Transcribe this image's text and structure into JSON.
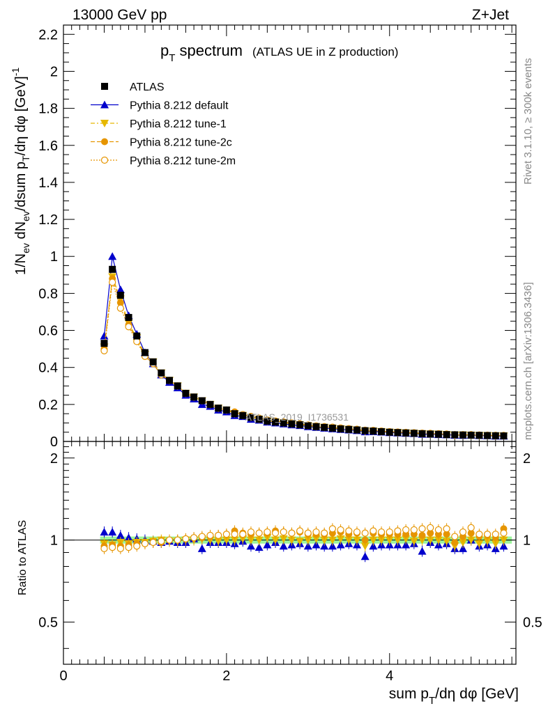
{
  "header": {
    "energy": "13000 GeV pp",
    "process": "Z+Jet"
  },
  "side_labels": {
    "rivet": "Rivet 3.1.10, ≥ 300k events",
    "source": "mcplots.cern.ch [arXiv:1306.3436]"
  },
  "watermark": "ATLAS_2019_I1736531",
  "chart_data": {
    "type": "scatter",
    "title": "pT spectrum",
    "title_main": "p",
    "title_sub": "T",
    "title_rest": " spectrum",
    "subtitle": "(ATLAS UE in Z production)",
    "xlabel": "sum p_T/dη dφ [GeV]",
    "ylabel": "1/N_ev dN_ev/dsum p_T/dη dφ [GeV]^-1",
    "ratio_ylabel": "Ratio to ATLAS",
    "xlim": [
      0,
      5.55
    ],
    "ylim": [
      0,
      2.25
    ],
    "ratio_ylim": [
      0.35,
      2.3
    ],
    "xticks": [
      "0",
      "2",
      "4"
    ],
    "yticks": [
      "0",
      "0.2",
      "0.4",
      "0.6",
      "0.8",
      "1",
      "1.2",
      "1.4",
      "1.6",
      "1.8",
      "2",
      "2.2"
    ],
    "ratio_yticks": [
      "0.5",
      "1",
      "2"
    ],
    "x": [
      0.5,
      0.6,
      0.7,
      0.8,
      0.9,
      1.0,
      1.1,
      1.2,
      1.3,
      1.4,
      1.5,
      1.6,
      1.7,
      1.8,
      1.9,
      2.0,
      2.1,
      2.2,
      2.3,
      2.4,
      2.5,
      2.6,
      2.7,
      2.8,
      2.9,
      3.0,
      3.1,
      3.2,
      3.3,
      3.4,
      3.5,
      3.6,
      3.7,
      3.8,
      3.9,
      4.0,
      4.1,
      4.2,
      4.3,
      4.4,
      4.5,
      4.6,
      4.7,
      4.8,
      4.9,
      5.0,
      5.1,
      5.2,
      5.3,
      5.4
    ],
    "series": [
      {
        "name": "ATLAS",
        "color": "#000000",
        "values": [
          0.53,
          0.93,
          0.79,
          0.67,
          0.57,
          0.48,
          0.43,
          0.37,
          0.33,
          0.3,
          0.26,
          0.24,
          0.22,
          0.2,
          0.18,
          0.17,
          0.15,
          0.14,
          0.13,
          0.12,
          0.11,
          0.105,
          0.1,
          0.095,
          0.09,
          0.085,
          0.08,
          0.076,
          0.072,
          0.068,
          0.065,
          0.062,
          0.058,
          0.056,
          0.053,
          0.05,
          0.048,
          0.046,
          0.044,
          0.042,
          0.04,
          0.039,
          0.037,
          0.036,
          0.035,
          0.034,
          0.033,
          0.032,
          0.031,
          0.03
        ],
        "ratio": [
          1,
          1,
          1,
          1,
          1,
          1,
          1,
          1,
          1,
          1,
          1,
          1,
          1,
          1,
          1,
          1,
          1,
          1,
          1,
          1,
          1,
          1,
          1,
          1,
          1,
          1,
          1,
          1,
          1,
          1,
          1,
          1,
          1,
          1,
          1,
          1,
          1,
          1,
          1,
          1,
          1,
          1,
          1,
          1,
          1,
          1,
          1,
          1,
          1,
          1
        ]
      },
      {
        "name": "Pythia 8.212 default",
        "color": "#0000cc",
        "values": [
          0.57,
          1.0,
          0.82,
          0.68,
          0.58,
          0.48,
          0.42,
          0.36,
          0.32,
          0.29,
          0.25,
          0.23,
          0.2,
          0.19,
          0.17,
          0.16,
          0.14,
          0.135,
          0.12,
          0.115,
          0.105,
          0.1,
          0.095,
          0.09,
          0.086,
          0.08,
          0.076,
          0.072,
          0.068,
          0.065,
          0.062,
          0.059,
          0.052,
          0.053,
          0.051,
          0.048,
          0.046,
          0.044,
          0.043,
          0.039,
          0.039,
          0.037,
          0.036,
          0.034,
          0.033,
          0.034,
          0.032,
          0.031,
          0.029,
          0.029
        ],
        "ratio": [
          1.07,
          1.07,
          1.04,
          1.02,
          1.01,
          1.0,
          0.99,
          0.98,
          0.99,
          0.98,
          0.98,
          1.01,
          0.93,
          0.98,
          0.98,
          0.98,
          0.97,
          0.99,
          0.95,
          0.94,
          0.96,
          0.98,
          0.95,
          0.96,
          0.97,
          0.95,
          0.96,
          0.95,
          0.95,
          0.96,
          0.97,
          0.96,
          0.87,
          0.95,
          0.96,
          0.96,
          0.96,
          0.96,
          0.97,
          0.91,
          0.98,
          0.96,
          0.97,
          0.93,
          0.93,
          1.0,
          0.95,
          0.96,
          0.93,
          0.95
        ]
      },
      {
        "name": "Pythia 8.212 tune-1",
        "color": "#e6b800",
        "values": [
          0.51,
          0.89,
          0.77,
          0.64,
          0.56,
          0.47,
          0.43,
          0.37,
          0.33,
          0.3,
          0.26,
          0.24,
          0.22,
          0.2,
          0.18,
          0.17,
          0.15,
          0.14,
          0.13,
          0.12,
          0.11,
          0.105,
          0.1,
          0.095,
          0.09,
          0.085,
          0.08,
          0.076,
          0.072,
          0.068,
          0.065,
          0.062,
          0.055,
          0.056,
          0.053,
          0.05,
          0.048,
          0.046,
          0.044,
          0.042,
          0.04,
          0.039,
          0.037,
          0.034,
          0.035,
          0.034,
          0.032,
          0.032,
          0.03,
          0.03
        ],
        "ratio": [
          0.97,
          0.96,
          0.98,
          0.97,
          0.98,
          0.98,
          0.99,
          1.0,
          0.99,
          0.99,
          1.0,
          1.0,
          1.01,
          1.0,
          0.99,
          1.0,
          1.0,
          1.01,
          1.0,
          1.0,
          1.02,
          1.0,
          1.01,
          1.0,
          0.99,
          1.0,
          1.01,
          1.0,
          1.0,
          1.01,
          1.0,
          1.0,
          0.95,
          1.0,
          1.0,
          1.0,
          1.0,
          1.01,
          0.99,
          1.0,
          1.0,
          1.0,
          0.99,
          0.95,
          0.98,
          1.0,
          0.97,
          0.99,
          0.97,
          1.0
        ]
      },
      {
        "name": "Pythia 8.212 tune-2c",
        "color": "#e69500",
        "values": [
          0.5,
          0.88,
          0.75,
          0.63,
          0.55,
          0.46,
          0.42,
          0.36,
          0.33,
          0.3,
          0.26,
          0.24,
          0.22,
          0.2,
          0.18,
          0.17,
          0.16,
          0.145,
          0.135,
          0.125,
          0.115,
          0.11,
          0.105,
          0.1,
          0.095,
          0.088,
          0.083,
          0.079,
          0.076,
          0.072,
          0.068,
          0.065,
          0.058,
          0.059,
          0.055,
          0.052,
          0.05,
          0.048,
          0.046,
          0.044,
          0.042,
          0.041,
          0.039,
          0.035,
          0.036,
          0.036,
          0.034,
          0.033,
          0.031,
          0.033
        ],
        "ratio": [
          0.95,
          0.96,
          0.95,
          0.96,
          0.97,
          0.97,
          0.98,
          0.98,
          1.0,
          1.0,
          1.01,
          1.02,
          1.02,
          1.03,
          1.04,
          1.05,
          1.08,
          1.06,
          1.05,
          1.06,
          1.06,
          1.08,
          1.07,
          1.06,
          1.07,
          1.05,
          1.05,
          1.05,
          1.06,
          1.07,
          1.05,
          1.06,
          1.0,
          1.06,
          1.05,
          1.05,
          1.05,
          1.05,
          1.05,
          1.04,
          1.06,
          1.05,
          1.05,
          0.98,
          1.03,
          1.06,
          1.03,
          1.04,
          1.02,
          1.1
        ]
      },
      {
        "name": "Pythia 8.212 tune-2m",
        "color": "#e69500",
        "values": [
          0.49,
          0.86,
          0.72,
          0.62,
          0.54,
          0.46,
          0.42,
          0.36,
          0.33,
          0.3,
          0.26,
          0.24,
          0.22,
          0.2,
          0.18,
          0.17,
          0.155,
          0.145,
          0.135,
          0.126,
          0.116,
          0.11,
          0.105,
          0.1,
          0.095,
          0.089,
          0.084,
          0.08,
          0.077,
          0.073,
          0.069,
          0.066,
          0.061,
          0.06,
          0.056,
          0.053,
          0.051,
          0.049,
          0.047,
          0.045,
          0.044,
          0.042,
          0.04,
          0.037,
          0.037,
          0.037,
          0.035,
          0.034,
          0.033,
          0.032
        ],
        "ratio": [
          0.93,
          0.94,
          0.93,
          0.94,
          0.95,
          0.97,
          0.98,
          0.99,
          1.0,
          1.0,
          1.01,
          1.02,
          1.03,
          1.04,
          1.04,
          1.05,
          1.05,
          1.05,
          1.07,
          1.06,
          1.07,
          1.06,
          1.07,
          1.06,
          1.08,
          1.06,
          1.07,
          1.06,
          1.1,
          1.09,
          1.08,
          1.07,
          1.06,
          1.08,
          1.07,
          1.07,
          1.08,
          1.09,
          1.09,
          1.1,
          1.11,
          1.09,
          1.1,
          1.03,
          1.07,
          1.11,
          1.05,
          1.05,
          1.05,
          1.06
        ]
      }
    ]
  }
}
